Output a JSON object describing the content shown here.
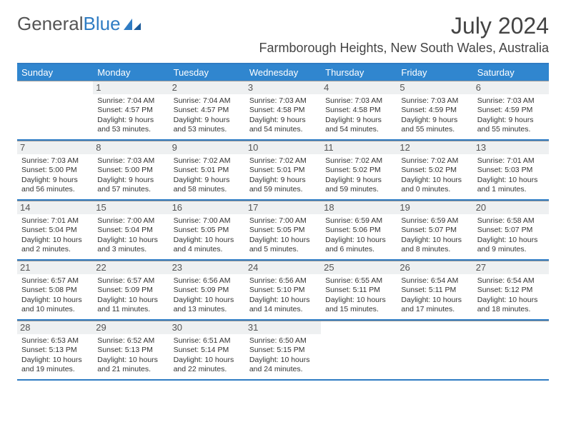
{
  "logo": {
    "part1": "General",
    "part2": "Blue"
  },
  "colors": {
    "brand": "#3086cf",
    "rule": "#2f7cc3",
    "daybg": "#eef0f1"
  },
  "title": "July 2024",
  "location": "Farmborough Heights, New South Wales, Australia",
  "dow": [
    "Sunday",
    "Monday",
    "Tuesday",
    "Wednesday",
    "Thursday",
    "Friday",
    "Saturday"
  ],
  "weeks": [
    [
      {
        "n": "",
        "empty": true
      },
      {
        "n": "1",
        "sr": "7:04 AM",
        "ss": "4:57 PM",
        "dh": "9",
        "dm": "53"
      },
      {
        "n": "2",
        "sr": "7:04 AM",
        "ss": "4:57 PM",
        "dh": "9",
        "dm": "53"
      },
      {
        "n": "3",
        "sr": "7:03 AM",
        "ss": "4:58 PM",
        "dh": "9",
        "dm": "54"
      },
      {
        "n": "4",
        "sr": "7:03 AM",
        "ss": "4:58 PM",
        "dh": "9",
        "dm": "54"
      },
      {
        "n": "5",
        "sr": "7:03 AM",
        "ss": "4:59 PM",
        "dh": "9",
        "dm": "55"
      },
      {
        "n": "6",
        "sr": "7:03 AM",
        "ss": "4:59 PM",
        "dh": "9",
        "dm": "55"
      }
    ],
    [
      {
        "n": "7",
        "sr": "7:03 AM",
        "ss": "5:00 PM",
        "dh": "9",
        "dm": "56"
      },
      {
        "n": "8",
        "sr": "7:03 AM",
        "ss": "5:00 PM",
        "dh": "9",
        "dm": "57"
      },
      {
        "n": "9",
        "sr": "7:02 AM",
        "ss": "5:01 PM",
        "dh": "9",
        "dm": "58"
      },
      {
        "n": "10",
        "sr": "7:02 AM",
        "ss": "5:01 PM",
        "dh": "9",
        "dm": "59"
      },
      {
        "n": "11",
        "sr": "7:02 AM",
        "ss": "5:02 PM",
        "dh": "9",
        "dm": "59"
      },
      {
        "n": "12",
        "sr": "7:02 AM",
        "ss": "5:02 PM",
        "dh": "10",
        "dm": "0"
      },
      {
        "n": "13",
        "sr": "7:01 AM",
        "ss": "5:03 PM",
        "dh": "10",
        "dm": "1"
      }
    ],
    [
      {
        "n": "14",
        "sr": "7:01 AM",
        "ss": "5:04 PM",
        "dh": "10",
        "dm": "2"
      },
      {
        "n": "15",
        "sr": "7:00 AM",
        "ss": "5:04 PM",
        "dh": "10",
        "dm": "3"
      },
      {
        "n": "16",
        "sr": "7:00 AM",
        "ss": "5:05 PM",
        "dh": "10",
        "dm": "4"
      },
      {
        "n": "17",
        "sr": "7:00 AM",
        "ss": "5:05 PM",
        "dh": "10",
        "dm": "5"
      },
      {
        "n": "18",
        "sr": "6:59 AM",
        "ss": "5:06 PM",
        "dh": "10",
        "dm": "6"
      },
      {
        "n": "19",
        "sr": "6:59 AM",
        "ss": "5:07 PM",
        "dh": "10",
        "dm": "8"
      },
      {
        "n": "20",
        "sr": "6:58 AM",
        "ss": "5:07 PM",
        "dh": "10",
        "dm": "9"
      }
    ],
    [
      {
        "n": "21",
        "sr": "6:57 AM",
        "ss": "5:08 PM",
        "dh": "10",
        "dm": "10"
      },
      {
        "n": "22",
        "sr": "6:57 AM",
        "ss": "5:09 PM",
        "dh": "10",
        "dm": "11"
      },
      {
        "n": "23",
        "sr": "6:56 AM",
        "ss": "5:09 PM",
        "dh": "10",
        "dm": "13"
      },
      {
        "n": "24",
        "sr": "6:56 AM",
        "ss": "5:10 PM",
        "dh": "10",
        "dm": "14"
      },
      {
        "n": "25",
        "sr": "6:55 AM",
        "ss": "5:11 PM",
        "dh": "10",
        "dm": "15"
      },
      {
        "n": "26",
        "sr": "6:54 AM",
        "ss": "5:11 PM",
        "dh": "10",
        "dm": "17"
      },
      {
        "n": "27",
        "sr": "6:54 AM",
        "ss": "5:12 PM",
        "dh": "10",
        "dm": "18"
      }
    ],
    [
      {
        "n": "28",
        "sr": "6:53 AM",
        "ss": "5:13 PM",
        "dh": "10",
        "dm": "19"
      },
      {
        "n": "29",
        "sr": "6:52 AM",
        "ss": "5:13 PM",
        "dh": "10",
        "dm": "21"
      },
      {
        "n": "30",
        "sr": "6:51 AM",
        "ss": "5:14 PM",
        "dh": "10",
        "dm": "22"
      },
      {
        "n": "31",
        "sr": "6:50 AM",
        "ss": "5:15 PM",
        "dh": "10",
        "dm": "24"
      },
      {
        "n": "",
        "empty": true
      },
      {
        "n": "",
        "empty": true
      },
      {
        "n": "",
        "empty": true
      }
    ]
  ],
  "labels": {
    "sunrise": "Sunrise:",
    "sunset": "Sunset:",
    "daylight": "Daylight:",
    "hours": "hours",
    "and": "and",
    "minutes": "minutes."
  }
}
